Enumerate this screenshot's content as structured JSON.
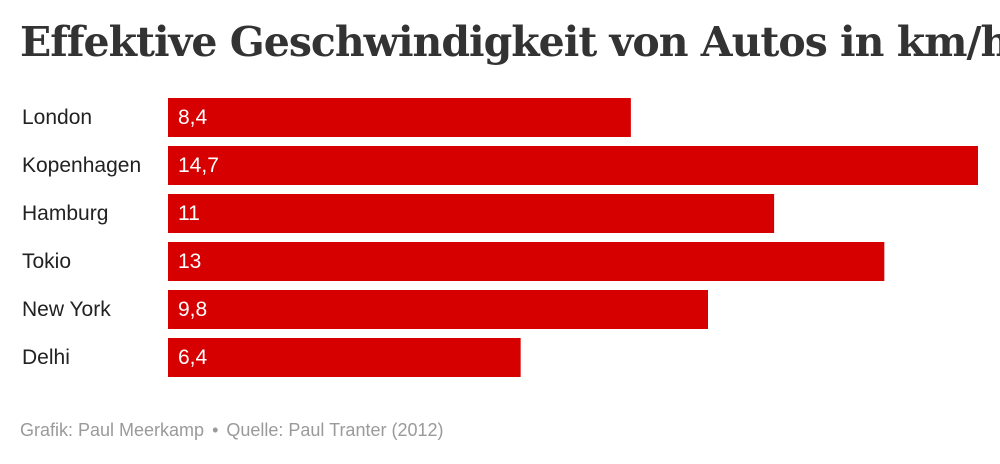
{
  "chart_data": {
    "type": "bar",
    "orientation": "horizontal",
    "title": "Effektive Geschwindigkeit von Autos in km/h",
    "categories": [
      "London",
      "Kopenhagen",
      "Hamburg",
      "Tokio",
      "New York",
      "Delhi"
    ],
    "values": [
      8.4,
      14.7,
      11,
      13,
      9.8,
      6.4
    ],
    "value_labels": [
      "8,4",
      "14,7",
      "11",
      "13",
      "9,8",
      "6,4"
    ],
    "xlim": [
      0,
      14.7
    ],
    "grid": false,
    "bar_color": "#d70000"
  },
  "footer": {
    "credit": "Grafik: Paul Meerkamp",
    "separator": "•",
    "source": "Quelle: Paul Tranter (2012)"
  }
}
